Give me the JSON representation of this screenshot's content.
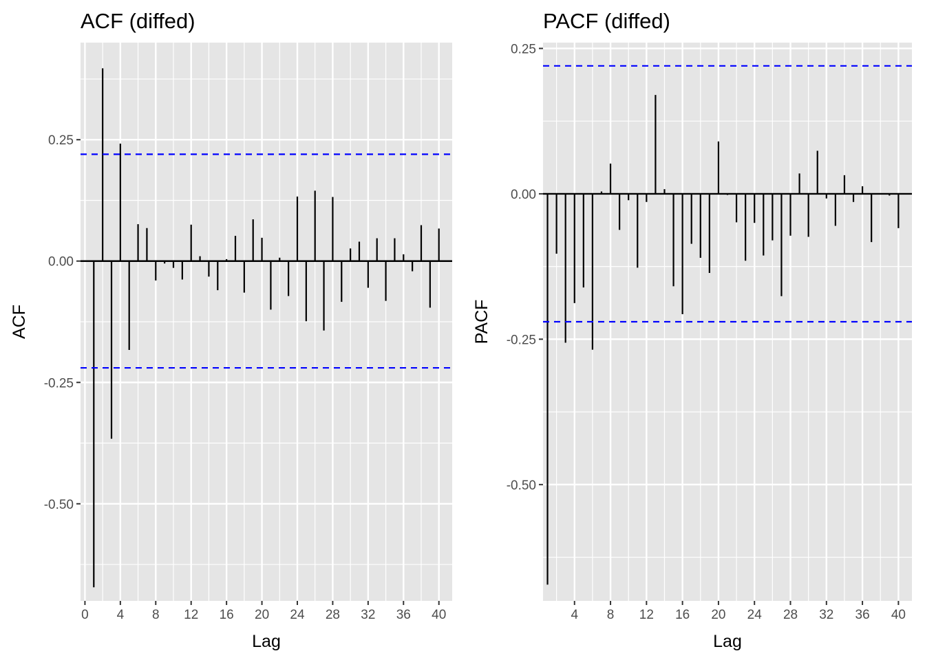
{
  "chart_data": [
    {
      "type": "bar",
      "title": "ACF (diffed)",
      "xlabel": "Lag",
      "ylabel": "ACF",
      "xlim": [
        -0.5,
        41.5
      ],
      "ylim": [
        -0.7,
        0.45
      ],
      "x_ticks": [
        0,
        4,
        8,
        12,
        16,
        20,
        24,
        28,
        32,
        36,
        40
      ],
      "y_ticks": [
        0.25,
        0.0,
        -0.25,
        -0.5
      ],
      "y_tick_labels": [
        "0.25",
        "0.00",
        "-0.25",
        "-0.50"
      ],
      "ci": [
        0.22,
        -0.22
      ],
      "grid": true,
      "lags": [
        1,
        2,
        3,
        4,
        5,
        6,
        7,
        8,
        9,
        10,
        11,
        12,
        13,
        14,
        15,
        16,
        17,
        18,
        19,
        20,
        21,
        22,
        23,
        24,
        25,
        26,
        27,
        28,
        29,
        30,
        31,
        32,
        33,
        34,
        35,
        36,
        37,
        38,
        39,
        40
      ],
      "values": [
        -0.672,
        0.397,
        -0.366,
        0.242,
        -0.183,
        0.076,
        0.068,
        -0.04,
        -0.005,
        -0.014,
        -0.038,
        0.075,
        0.01,
        -0.032,
        -0.06,
        0.004,
        0.052,
        -0.065,
        0.086,
        0.048,
        -0.1,
        0.007,
        -0.072,
        0.133,
        -0.124,
        0.145,
        -0.143,
        0.132,
        -0.084,
        0.026,
        0.04,
        -0.055,
        0.047,
        -0.082,
        0.047,
        0.014,
        -0.021,
        0.074,
        -0.096,
        0.067
      ]
    },
    {
      "type": "bar",
      "title": "PACF (diffed)",
      "xlabel": "Lag",
      "ylabel": "PACF",
      "xlim": [
        0.5,
        41.5
      ],
      "ylim": [
        -0.7,
        0.26
      ],
      "x_ticks": [
        4,
        8,
        12,
        16,
        20,
        24,
        28,
        32,
        36,
        40
      ],
      "y_ticks": [
        0.25,
        0.0,
        -0.25,
        -0.5
      ],
      "y_tick_labels": [
        "0.25",
        "0.00",
        "-0.25",
        "-0.50"
      ],
      "ci": [
        0.22,
        -0.22
      ],
      "grid": true,
      "lags": [
        1,
        2,
        3,
        4,
        5,
        6,
        7,
        8,
        9,
        10,
        11,
        12,
        13,
        14,
        15,
        16,
        17,
        18,
        19,
        20,
        21,
        22,
        23,
        24,
        25,
        26,
        27,
        28,
        29,
        30,
        31,
        32,
        33,
        34,
        35,
        36,
        37,
        38,
        39,
        40
      ],
      "values": [
        -0.672,
        -0.103,
        -0.256,
        -0.188,
        -0.161,
        -0.268,
        0.004,
        0.052,
        -0.062,
        -0.011,
        -0.127,
        -0.014,
        0.17,
        0.008,
        -0.159,
        -0.207,
        -0.086,
        -0.11,
        -0.136,
        0.09,
        -0.002,
        -0.049,
        -0.115,
        -0.05,
        -0.106,
        -0.08,
        -0.176,
        -0.072,
        0.035,
        -0.074,
        0.074,
        -0.008,
        -0.055,
        0.032,
        -0.014,
        0.013,
        -0.083,
        0.001,
        -0.003,
        -0.059
      ]
    }
  ],
  "colors": {
    "panel_background": "#e5e5e5",
    "grid": "#ffffff",
    "bars": "#000000",
    "ci_line": "#0000ff",
    "tick_label": "#4d4d4d"
  }
}
